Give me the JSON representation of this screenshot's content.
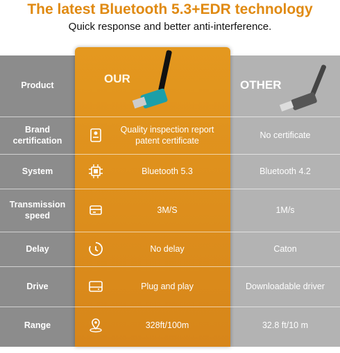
{
  "header": {
    "title": "The latest Bluetooth 5.3+EDR technology",
    "subtitle": "Quick response and better anti-interference."
  },
  "table": {
    "columns": [
      "Product",
      "OUR",
      "OTHER"
    ],
    "rows": [
      [
        "Brand certification",
        "Quality inspection report patent certificate",
        "No certificate"
      ],
      [
        "System",
        "Bluetooth 5.3",
        "Bluetooth 4.2"
      ],
      [
        "Transmission speed",
        "3M/S",
        "1M/s"
      ],
      [
        "Delay",
        "No delay",
        "Caton"
      ],
      [
        "Drive",
        "Plug and play",
        "Downloadable driver"
      ],
      [
        "Range",
        "328ft/100m",
        "32.8 ft/10 m"
      ]
    ]
  }
}
